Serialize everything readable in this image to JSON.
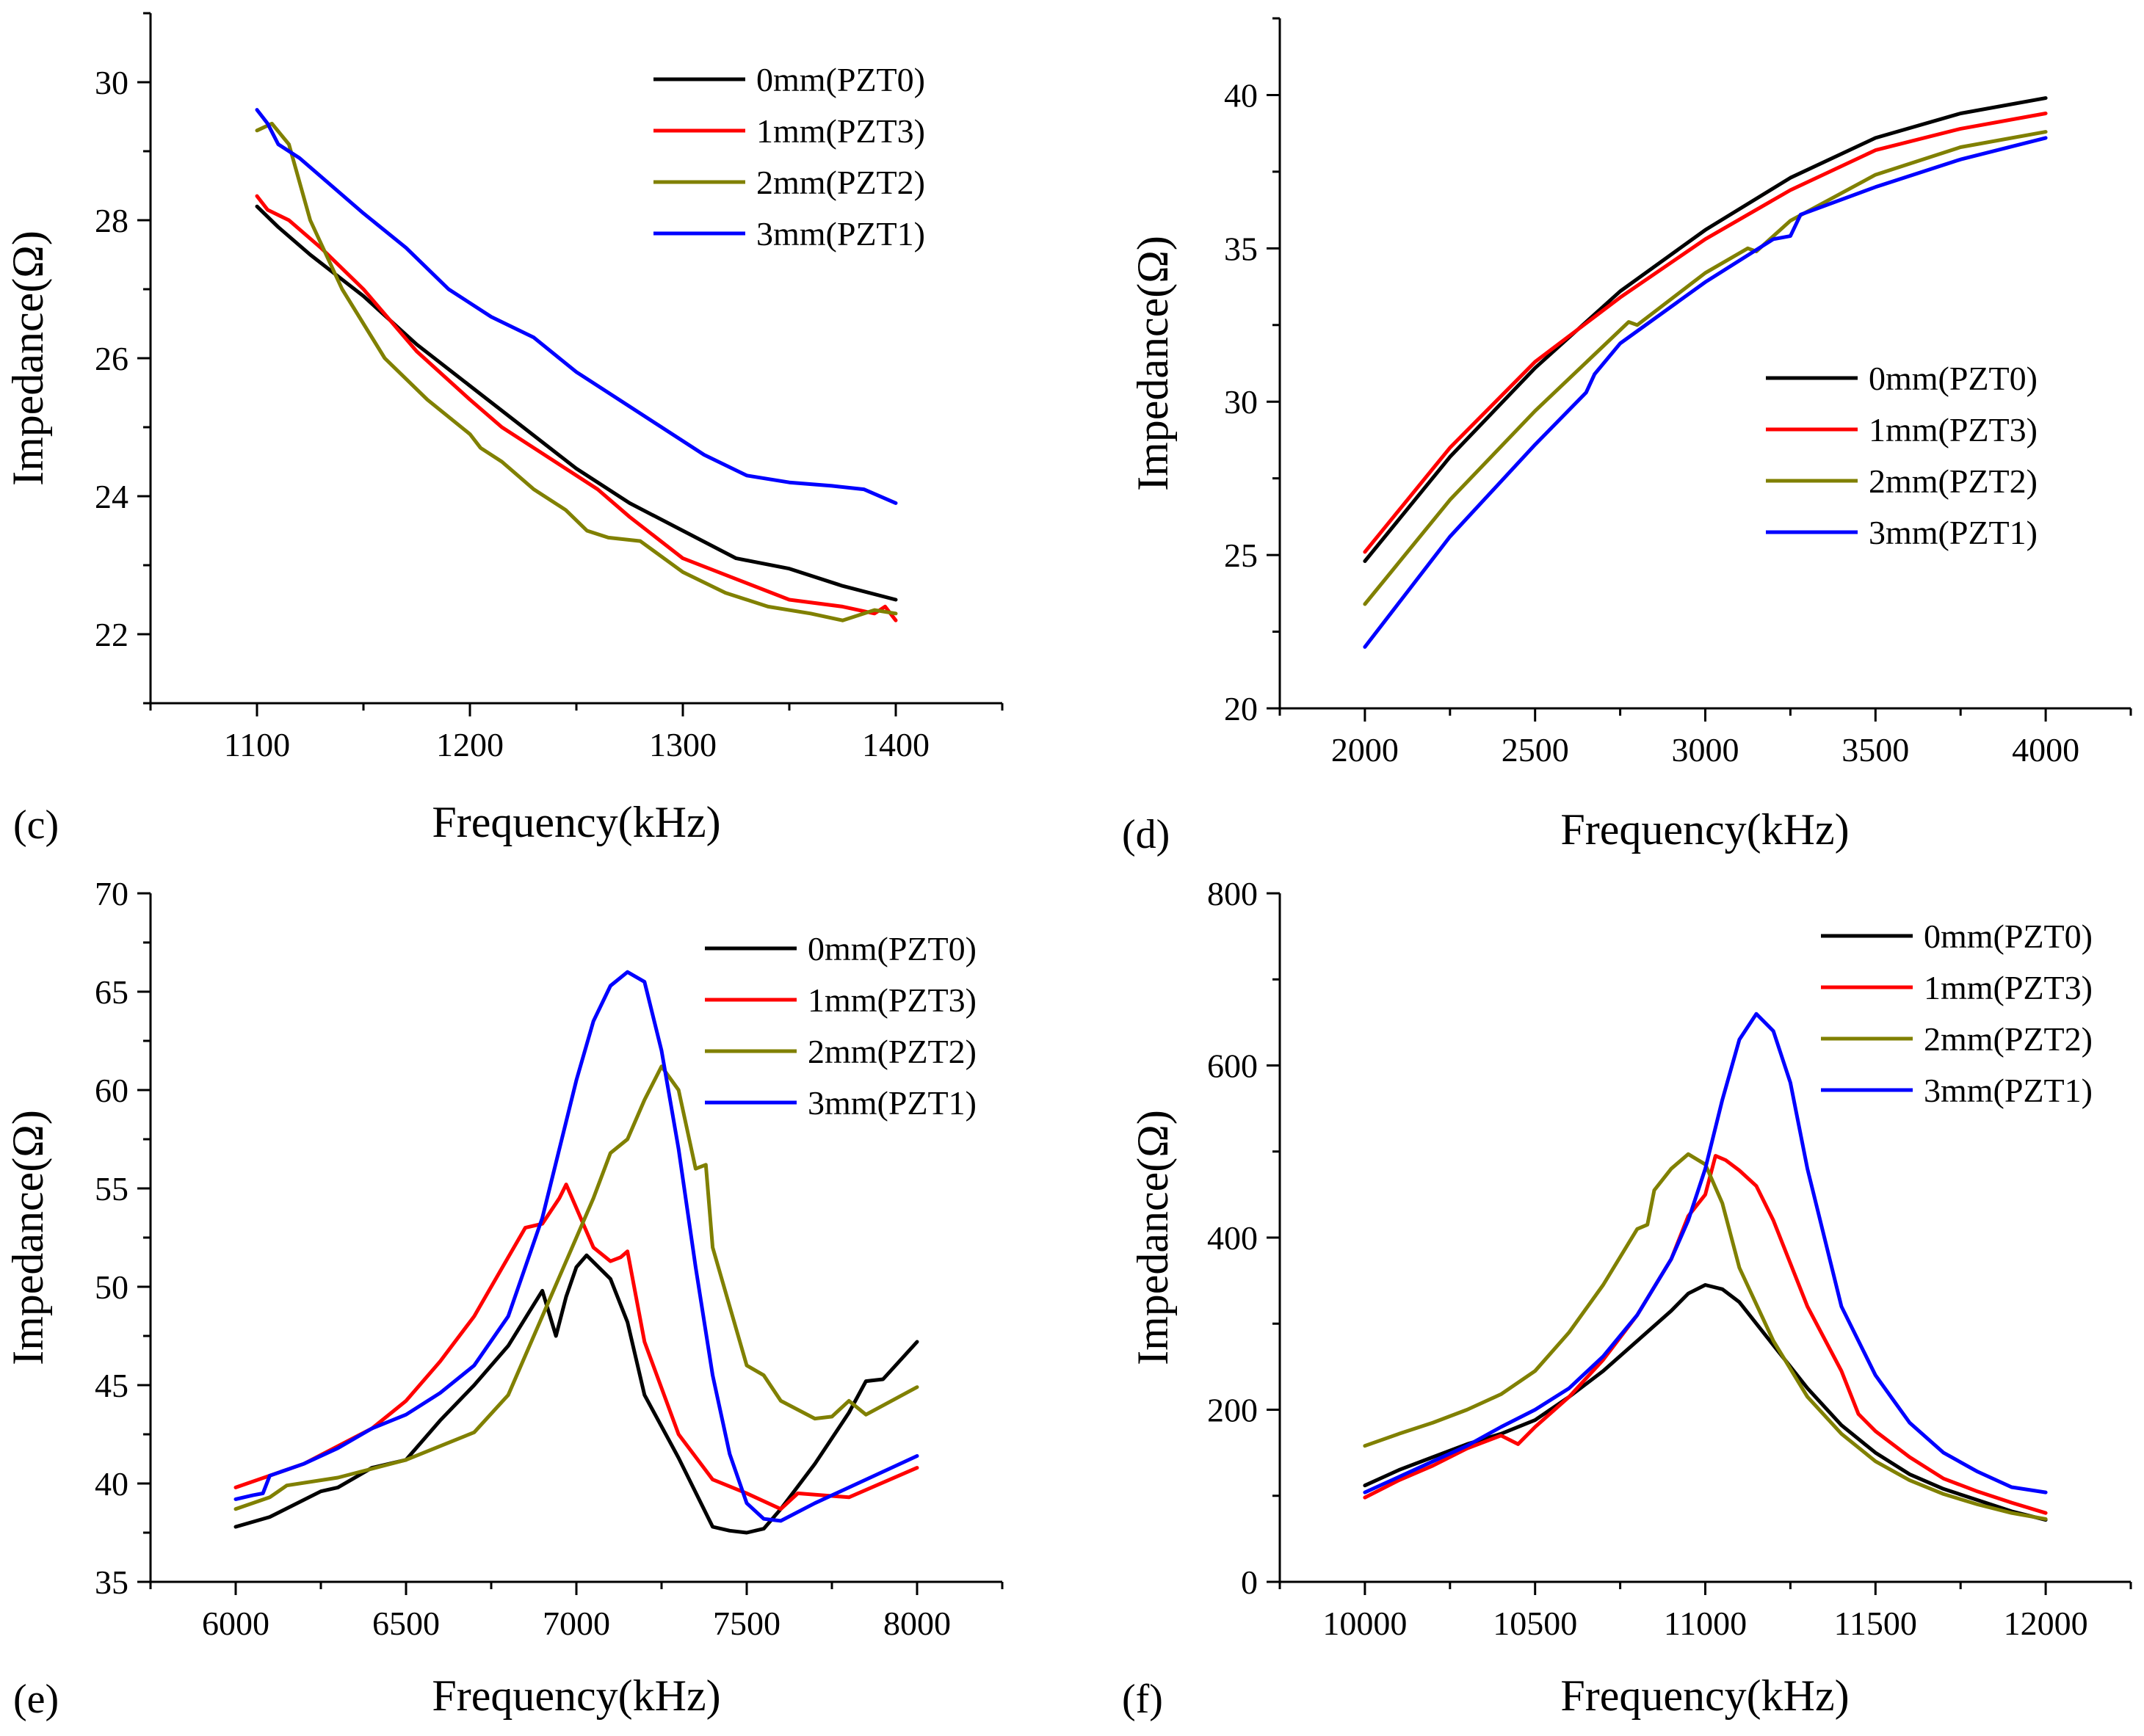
{
  "chart_data": [
    {
      "type": "line",
      "panel_label": "(c)",
      "xlabel": "Frequency(kHz)",
      "ylabel": "Impedance(Ω)",
      "xlim": [
        1050,
        1450
      ],
      "ylim": [
        21,
        31
      ],
      "xticks": [
        1100,
        1200,
        1300,
        1400
      ],
      "yticks": [
        22,
        24,
        26,
        28,
        30
      ],
      "legend_position": "top-right",
      "series": [
        {
          "name": "0mm(PZT0)",
          "color": "#000000",
          "x": [
            1100,
            1110,
            1125,
            1150,
            1175,
            1200,
            1225,
            1250,
            1275,
            1300,
            1325,
            1350,
            1375,
            1400
          ],
          "y": [
            28.2,
            27.9,
            27.5,
            26.9,
            26.2,
            25.6,
            25.0,
            24.4,
            23.9,
            23.5,
            23.1,
            22.95,
            22.7,
            22.5
          ]
        },
        {
          "name": "1mm(PZT3)",
          "color": "#ff0000",
          "x": [
            1100,
            1105,
            1115,
            1130,
            1150,
            1175,
            1200,
            1215,
            1230,
            1245,
            1260,
            1275,
            1300,
            1325,
            1350,
            1375,
            1390,
            1395,
            1400
          ],
          "y": [
            28.35,
            28.15,
            28.0,
            27.6,
            27.0,
            26.1,
            25.4,
            25.0,
            24.7,
            24.4,
            24.1,
            23.7,
            23.1,
            22.8,
            22.5,
            22.4,
            22.3,
            22.4,
            22.2
          ]
        },
        {
          "name": "2mm(PZT2)",
          "color": "#808000",
          "x": [
            1100,
            1107,
            1115,
            1125,
            1140,
            1160,
            1180,
            1200,
            1205,
            1215,
            1230,
            1245,
            1255,
            1265,
            1280,
            1300,
            1320,
            1340,
            1360,
            1375,
            1390,
            1400
          ],
          "y": [
            29.3,
            29.4,
            29.1,
            28.0,
            27.0,
            26.0,
            25.4,
            24.9,
            24.7,
            24.5,
            24.1,
            23.8,
            23.5,
            23.4,
            23.35,
            22.9,
            22.6,
            22.4,
            22.3,
            22.2,
            22.35,
            22.3
          ]
        },
        {
          "name": "3mm(PZT1)",
          "color": "#0000ff",
          "x": [
            1100,
            1105,
            1110,
            1120,
            1135,
            1150,
            1170,
            1190,
            1210,
            1230,
            1250,
            1270,
            1290,
            1310,
            1330,
            1350,
            1370,
            1385,
            1400
          ],
          "y": [
            29.6,
            29.4,
            29.1,
            28.9,
            28.5,
            28.1,
            27.6,
            27.0,
            26.6,
            26.3,
            25.8,
            25.4,
            25.0,
            24.6,
            24.3,
            24.2,
            24.15,
            24.1,
            23.9
          ]
        }
      ]
    },
    {
      "type": "line",
      "panel_label": "(d)",
      "xlabel": "Frequency(kHz)",
      "ylabel": "Impedance(Ω)",
      "xlim": [
        1750,
        4250
      ],
      "ylim": [
        20,
        42.5
      ],
      "xticks": [
        2000,
        2500,
        3000,
        3500,
        4000
      ],
      "yticks": [
        20,
        25,
        30,
        35,
        40
      ],
      "legend_position": "center-right",
      "series": [
        {
          "name": "0mm(PZT0)",
          "color": "#000000",
          "x": [
            2000,
            2250,
            2500,
            2750,
            3000,
            3250,
            3500,
            3750,
            4000
          ],
          "y": [
            24.8,
            28.2,
            31.1,
            33.6,
            35.6,
            37.3,
            38.6,
            39.4,
            39.9
          ]
        },
        {
          "name": "1mm(PZT3)",
          "color": "#ff0000",
          "x": [
            2000,
            2250,
            2500,
            2750,
            3000,
            3250,
            3500,
            3750,
            4000
          ],
          "y": [
            25.1,
            28.5,
            31.3,
            33.4,
            35.3,
            36.9,
            38.2,
            38.9,
            39.4
          ]
        },
        {
          "name": "2mm(PZT2)",
          "color": "#808000",
          "x": [
            2000,
            2250,
            2500,
            2775,
            2800,
            3000,
            3125,
            3150,
            3250,
            3500,
            3750,
            4000
          ],
          "y": [
            23.4,
            26.8,
            29.7,
            32.6,
            32.5,
            34.2,
            35.0,
            34.9,
            35.9,
            37.4,
            38.3,
            38.8
          ]
        },
        {
          "name": "3mm(PZT1)",
          "color": "#0000ff",
          "x": [
            2000,
            2250,
            2500,
            2650,
            2675,
            2750,
            3000,
            3200,
            3250,
            3280,
            3500,
            3750,
            4000
          ],
          "y": [
            22.0,
            25.6,
            28.6,
            30.3,
            30.9,
            31.9,
            33.9,
            35.3,
            35.4,
            36.1,
            37.0,
            37.9,
            38.6
          ]
        }
      ]
    },
    {
      "type": "line",
      "panel_label": "(e)",
      "xlabel": "Frequency(kHz)",
      "ylabel": "Impedance(Ω)",
      "xlim": [
        5750,
        8250
      ],
      "ylim": [
        35,
        70
      ],
      "xticks": [
        6000,
        6500,
        7000,
        7500,
        8000
      ],
      "yticks": [
        35,
        40,
        45,
        50,
        55,
        60,
        65,
        70
      ],
      "legend_position": "top-right",
      "series": [
        {
          "name": "0mm(PZT0)",
          "color": "#000000",
          "x": [
            6000,
            6100,
            6250,
            6300,
            6400,
            6500,
            6600,
            6700,
            6800,
            6900,
            6940,
            6970,
            7000,
            7030,
            7100,
            7150,
            7200,
            7300,
            7400,
            7450,
            7500,
            7550,
            7600,
            7700,
            7800,
            7850,
            7900,
            8000
          ],
          "y": [
            37.8,
            38.3,
            39.6,
            39.8,
            40.8,
            41.2,
            43.2,
            45.0,
            47.0,
            49.8,
            47.5,
            49.5,
            51.0,
            51.6,
            50.4,
            48.2,
            44.5,
            41.3,
            37.8,
            37.6,
            37.5,
            37.7,
            38.7,
            41.0,
            43.6,
            45.2,
            45.3,
            47.2
          ]
        },
        {
          "name": "1mm(PZT3)",
          "color": "#ff0000",
          "x": [
            6000,
            6200,
            6400,
            6500,
            6600,
            6700,
            6800,
            6850,
            6900,
            6950,
            6970,
            7000,
            7050,
            7100,
            7130,
            7150,
            7175,
            7200,
            7300,
            7400,
            7500,
            7600,
            7650,
            7800,
            8000
          ],
          "y": [
            39.8,
            41.0,
            42.8,
            44.2,
            46.2,
            48.5,
            51.5,
            53.0,
            53.2,
            54.5,
            55.2,
            54.0,
            52.0,
            51.3,
            51.5,
            51.8,
            49.5,
            47.2,
            42.5,
            40.2,
            39.5,
            38.7,
            39.5,
            39.3,
            40.8
          ]
        },
        {
          "name": "2mm(PZT2)",
          "color": "#808000",
          "x": [
            6000,
            6100,
            6150,
            6300,
            6500,
            6700,
            6800,
            6900,
            7000,
            7050,
            7100,
            7150,
            7200,
            7250,
            7300,
            7350,
            7380,
            7400,
            7500,
            7550,
            7600,
            7700,
            7750,
            7800,
            7850,
            8000
          ],
          "y": [
            38.7,
            39.3,
            39.9,
            40.3,
            41.2,
            42.6,
            44.5,
            48.5,
            52.5,
            54.5,
            56.8,
            57.5,
            59.5,
            61.2,
            60.0,
            56.0,
            56.2,
            52.0,
            46.0,
            45.5,
            44.2,
            43.3,
            43.4,
            44.2,
            43.5,
            44.9
          ]
        },
        {
          "name": "3mm(PZT1)",
          "color": "#0000ff",
          "x": [
            6000,
            6050,
            6080,
            6100,
            6200,
            6300,
            6400,
            6500,
            6600,
            6700,
            6800,
            6900,
            6950,
            7000,
            7050,
            7100,
            7150,
            7200,
            7250,
            7300,
            7350,
            7400,
            7450,
            7500,
            7550,
            7600,
            7700,
            8000
          ],
          "y": [
            39.2,
            39.4,
            39.5,
            40.4,
            41.0,
            41.8,
            42.8,
            43.5,
            44.6,
            46.0,
            48.5,
            53.5,
            57.0,
            60.5,
            63.5,
            65.3,
            66.0,
            65.5,
            62.0,
            57.0,
            51.0,
            45.5,
            41.5,
            39.0,
            38.2,
            38.1,
            39.0,
            41.4
          ]
        }
      ]
    },
    {
      "type": "line",
      "panel_label": "(f)",
      "xlabel": "Frequency(kHz)",
      "ylabel": "Impedance(Ω)",
      "xlim": [
        9750,
        12250
      ],
      "ylim": [
        0,
        800
      ],
      "xticks": [
        10000,
        10500,
        11000,
        11500,
        12000
      ],
      "yticks": [
        0,
        200,
        400,
        600,
        800
      ],
      "legend_position": "top-right",
      "series": [
        {
          "name": "0mm(PZT0)",
          "color": "#000000",
          "x": [
            10000,
            10100,
            10200,
            10300,
            10400,
            10500,
            10600,
            10700,
            10800,
            10900,
            10950,
            11000,
            11050,
            11100,
            11200,
            11300,
            11400,
            11500,
            11600,
            11700,
            11800,
            11900,
            12000
          ],
          "y": [
            112,
            130,
            145,
            160,
            172,
            188,
            215,
            245,
            280,
            315,
            335,
            345,
            340,
            325,
            275,
            225,
            182,
            150,
            125,
            108,
            95,
            82,
            72
          ]
        },
        {
          "name": "1mm(PZT3)",
          "color": "#ff0000",
          "x": [
            10000,
            10100,
            10200,
            10300,
            10400,
            10450,
            10500,
            10600,
            10700,
            10800,
            10900,
            10950,
            11000,
            11030,
            11060,
            11100,
            11150,
            11200,
            11250,
            11300,
            11400,
            11450,
            11500,
            11600,
            11700,
            11800,
            11900,
            12000
          ],
          "y": [
            98,
            118,
            135,
            155,
            170,
            160,
            180,
            215,
            258,
            310,
            375,
            425,
            450,
            495,
            490,
            478,
            460,
            420,
            370,
            320,
            245,
            195,
            175,
            145,
            120,
            105,
            92,
            80
          ]
        },
        {
          "name": "2mm(PZT2)",
          "color": "#808000",
          "x": [
            10000,
            10100,
            10200,
            10300,
            10400,
            10500,
            10600,
            10700,
            10800,
            10830,
            10850,
            10900,
            10950,
            11000,
            11050,
            11100,
            11200,
            11300,
            11400,
            11500,
            11600,
            11700,
            11800,
            11900,
            12000
          ],
          "y": [
            158,
            172,
            185,
            200,
            218,
            245,
            290,
            345,
            410,
            415,
            455,
            480,
            497,
            485,
            440,
            365,
            280,
            215,
            172,
            140,
            118,
            102,
            90,
            80,
            73
          ]
        },
        {
          "name": "3mm(PZT1)",
          "color": "#0000ff",
          "x": [
            10000,
            10100,
            10200,
            10300,
            10400,
            10500,
            10600,
            10700,
            10800,
            10900,
            10950,
            11000,
            11050,
            11100,
            11150,
            11200,
            11250,
            11300,
            11400,
            11500,
            11600,
            11700,
            11800,
            11900,
            12000
          ],
          "y": [
            104,
            122,
            140,
            158,
            180,
            200,
            225,
            262,
            310,
            375,
            420,
            480,
            560,
            630,
            660,
            640,
            580,
            480,
            320,
            240,
            185,
            150,
            128,
            110,
            104
          ]
        }
      ]
    }
  ]
}
